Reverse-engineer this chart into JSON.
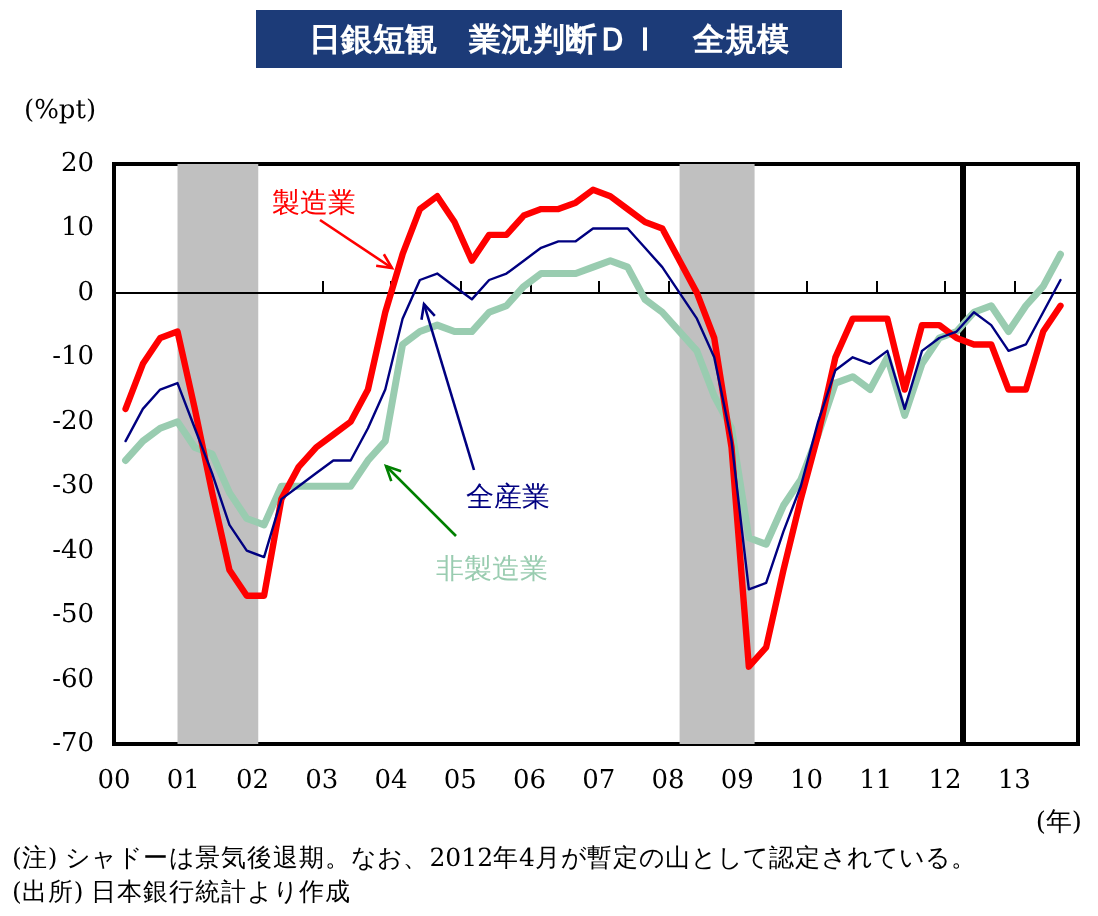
{
  "chart_data": {
    "type": "line",
    "title": "日銀短観　業況判断ＤＩ　全規模",
    "ylabel": "(%pt)",
    "xlabel": "(年)",
    "x": [
      2000.167,
      2000.417,
      2000.667,
      2000.917,
      2001.167,
      2001.417,
      2001.667,
      2001.917,
      2002.167,
      2002.417,
      2002.667,
      2002.917,
      2003.167,
      2003.417,
      2003.667,
      2003.917,
      2004.167,
      2004.417,
      2004.667,
      2004.917,
      2005.167,
      2005.417,
      2005.667,
      2005.917,
      2006.167,
      2006.417,
      2006.667,
      2006.917,
      2007.167,
      2007.417,
      2007.667,
      2007.917,
      2008.167,
      2008.417,
      2008.667,
      2008.917,
      2009.167,
      2009.417,
      2009.667,
      2009.917,
      2010.167,
      2010.417,
      2010.667,
      2010.917,
      2011.167,
      2011.417,
      2011.667,
      2011.917,
      2012.167,
      2012.417,
      2012.667,
      2012.917,
      2013.167,
      2013.417,
      2013.667
    ],
    "series": [
      {
        "name": "製造業",
        "color": "#ff0000",
        "values": [
          -18,
          -11,
          -7,
          -6,
          -18,
          -31,
          -43,
          -47,
          -47,
          -32,
          -27,
          -24,
          -22,
          -20,
          -15,
          -3,
          6,
          13,
          15,
          11,
          5,
          9,
          9,
          12,
          13,
          13,
          14,
          16,
          15,
          13,
          11,
          10,
          5,
          0,
          -7,
          -24,
          -58,
          -55,
          -43,
          -32,
          -22,
          -10,
          -4,
          -4,
          -4,
          -15,
          -5,
          -5,
          -7,
          -8,
          -8,
          -15,
          -15,
          -6,
          -2
        ]
      },
      {
        "name": "全産業",
        "color": "#000080",
        "values": [
          -23,
          -18,
          -15,
          -14,
          -21,
          -28,
          -36,
          -40,
          -41,
          -32,
          -30,
          -28,
          -26,
          -26,
          -21,
          -15,
          -4,
          2,
          3,
          1,
          -1,
          2,
          3,
          5,
          7,
          8,
          8,
          10,
          10,
          10,
          7,
          4,
          0,
          -4,
          -10,
          -23,
          -46,
          -45,
          -37,
          -30,
          -20,
          -12,
          -10,
          -11,
          -9,
          -18,
          -9,
          -7,
          -6,
          -3,
          -5,
          -9,
          -8,
          -3,
          2
        ]
      },
      {
        "name": "非製造業",
        "color": "#99ccb0",
        "values": [
          -26,
          -23,
          -21,
          -20,
          -24,
          -25,
          -31,
          -35,
          -36,
          -30,
          -30,
          -30,
          -30,
          -30,
          -26,
          -23,
          -8,
          -6,
          -5,
          -6,
          -6,
          -3,
          -2,
          1,
          3,
          3,
          3,
          4,
          5,
          4,
          -1,
          -3,
          -6,
          -9,
          -16,
          -21,
          -38,
          -39,
          -33,
          -29,
          -22,
          -14,
          -13,
          -15,
          -10,
          -19,
          -11,
          -7,
          -6,
          -3,
          -2,
          -6,
          -2,
          1,
          6
        ]
      }
    ],
    "xlim": [
      2000,
      2013.92
    ],
    "xticks": [
      {
        "value": 2000,
        "label": "00"
      },
      {
        "value": 2001,
        "label": "01"
      },
      {
        "value": 2002,
        "label": "02"
      },
      {
        "value": 2003,
        "label": "03"
      },
      {
        "value": 2004,
        "label": "04"
      },
      {
        "value": 2005,
        "label": "05"
      },
      {
        "value": 2006,
        "label": "06"
      },
      {
        "value": 2007,
        "label": "07"
      },
      {
        "value": 2008,
        "label": "08"
      },
      {
        "value": 2009,
        "label": "09"
      },
      {
        "value": 2010,
        "label": "10"
      },
      {
        "value": 2011,
        "label": "11"
      },
      {
        "value": 2012,
        "label": "12"
      },
      {
        "value": 2013,
        "label": "13"
      }
    ],
    "ylim": [
      -70,
      20
    ],
    "yticks": [
      -70,
      -60,
      -50,
      -40,
      -30,
      -20,
      -10,
      0,
      10,
      20
    ],
    "bands": [
      {
        "axis": "x",
        "from": 2000.917,
        "to": 2002.083,
        "color": "#c0c0c0"
      },
      {
        "axis": "x",
        "from": 2008.167,
        "to": 2009.25,
        "color": "#c0c0c0"
      }
    ],
    "ref_lines": [
      {
        "axis": "x",
        "value": 2012.25,
        "color": "#000000"
      },
      {
        "axis": "y",
        "value": 0,
        "color": "#000000"
      }
    ],
    "marker": "none",
    "grid": false,
    "legend": false,
    "annotations": [
      "(注) シャドーは景気後退期。なお、2012年4月が暫定の山として認定されている。",
      "(出所) 日本銀行統計より作成"
    ]
  }
}
